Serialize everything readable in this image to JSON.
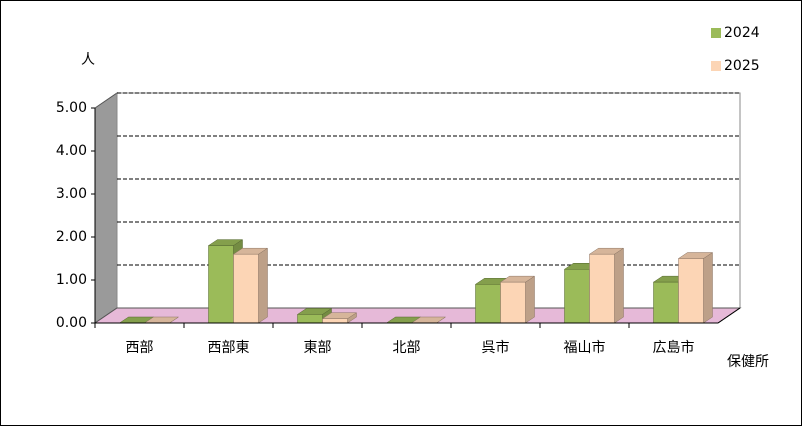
{
  "chart_data": {
    "type": "bar",
    "y_label": "人",
    "x_label": "保健所",
    "categories": [
      "西部",
      "西部東",
      "東部",
      "北部",
      "呉市",
      "福山市",
      "広島市"
    ],
    "series": [
      {
        "name": "2024",
        "color": "#9bbb59",
        "values": [
          0.0,
          1.8,
          0.2,
          0.0,
          0.9,
          1.25,
          0.95
        ]
      },
      {
        "name": "2025",
        "color": "#fcd5b5",
        "values": [
          0.0,
          1.6,
          0.1,
          0.0,
          0.95,
          1.6,
          1.5
        ]
      }
    ],
    "ylim": [
      0,
      5
    ],
    "yticks": [
      {
        "value": 0,
        "label": "0.00"
      },
      {
        "value": 1,
        "label": "1.00"
      },
      {
        "value": 2,
        "label": "2.00"
      },
      {
        "value": 3,
        "label": "3.00"
      },
      {
        "value": 4,
        "label": "4.00"
      },
      {
        "value": 5,
        "label": "5.00"
      }
    ],
    "grid": true,
    "legend": "top-right"
  }
}
